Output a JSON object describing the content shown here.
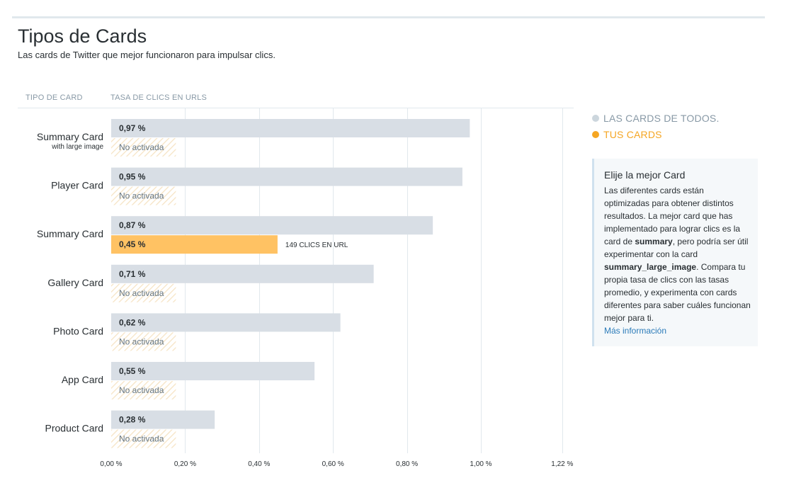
{
  "header": {
    "title": "Tipos de Cards",
    "subtitle": "Las cards de Twitter que mejor funcionaron para impulsar clics."
  },
  "columns": {
    "card_type": "TIPO DE CARD",
    "ctr": "TASA DE CLICS EN URLS"
  },
  "legend": {
    "all_cards": "LAS CARDS DE TODOS.",
    "your_cards": "TUS CARDS"
  },
  "info": {
    "title": "Elije la mejor Card",
    "body_1": "Las diferentes cards están optimizadas para obtener distintos resultados. La mejor card que has implementado para lograr clics es la card de ",
    "bold_1": "summary",
    "body_2": ", pero podría ser útil experimentar con la card ",
    "bold_2": "summary_large_image",
    "body_3": ". Compara tu propia tasa de clics con las tasas promedio, y experimenta con cards diferentes para saber cuáles funcionan mejor para ti.",
    "link": "Más información"
  },
  "colors": {
    "all_bar": "#d8dee5",
    "yours_bar": "#ffc263",
    "grid": "#e1e8ed",
    "legend_all_dot": "#ccd6dd",
    "legend_yours_dot": "#f5a623",
    "hatch": "#f6e3c3"
  },
  "chart_data": {
    "type": "bar",
    "orientation": "horizontal",
    "categories": [
      {
        "name": "Summary Card",
        "sub": "with large image"
      },
      {
        "name": "Player Card",
        "sub": ""
      },
      {
        "name": "Summary Card",
        "sub": ""
      },
      {
        "name": "Gallery Card",
        "sub": ""
      },
      {
        "name": "Photo Card",
        "sub": ""
      },
      {
        "name": "App Card",
        "sub": ""
      },
      {
        "name": "Product Card",
        "sub": ""
      }
    ],
    "series": [
      {
        "name": "LAS CARDS DE TODOS.",
        "values": [
          0.97,
          0.95,
          0.87,
          0.71,
          0.62,
          0.55,
          0.28
        ],
        "labels": [
          "0,97 %",
          "0,95 %",
          "0,87 %",
          "0,71 %",
          "0,62 %",
          "0,55 %",
          "0,28 %"
        ]
      },
      {
        "name": "TUS CARDS",
        "values": [
          null,
          null,
          0.45,
          null,
          null,
          null,
          null
        ],
        "labels": [
          "No activada",
          "No activada",
          "0,45 %",
          "No activada",
          "No activada",
          "No activada",
          "No activada"
        ]
      }
    ],
    "annotations": [
      {
        "category_index": 2,
        "series": "TUS CARDS",
        "text": "149 CLICS EN URL"
      }
    ],
    "xlim": [
      0,
      1.22
    ],
    "xticks": [
      0,
      0.2,
      0.4,
      0.6,
      0.8,
      1.0,
      1.22
    ],
    "xtick_labels": [
      "0,00 %",
      "0,20 %",
      "0,40 %",
      "0,60 %",
      "0,80 %",
      "1,00 %",
      "1,22 %"
    ],
    "grid": true,
    "legend": "top-right"
  }
}
